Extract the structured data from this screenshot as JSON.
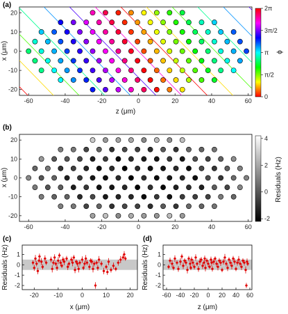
{
  "chart_data": [
    {
      "panel": "(a)",
      "type": "scatter",
      "xlabel": "z (μm)",
      "ylabel": "x (μm)",
      "xlim": [
        -65,
        62
      ],
      "ylim": [
        -23,
        23
      ],
      "xticks": [
        "-60",
        "-40",
        "-20",
        "0",
        "20",
        "40",
        "60"
      ],
      "yticks": [
        "20",
        "10",
        "0",
        "-10",
        "-20"
      ],
      "colorbar": {
        "label": "ϕ",
        "range": [
          0,
          6.2832
        ],
        "ticks": [
          "2π",
          "3π/2",
          "π",
          "π/2",
          "0"
        ],
        "colormap": "hsv"
      },
      "points_note": "ion positions colored by phase phi; diagonal phase fronts overlaid"
    },
    {
      "panel": "(b)",
      "type": "scatter",
      "xlabel": "",
      "ylabel": "x (μm)",
      "xlim": [
        -65,
        62
      ],
      "ylim": [
        -23,
        23
      ],
      "xticks": [
        "-60",
        "-40",
        "-20",
        "0",
        "20",
        "40",
        "60"
      ],
      "yticks": [
        "20",
        "10",
        "0",
        "-10",
        "-20"
      ],
      "colorbar": {
        "label": "Residuals (Hz)",
        "range": [
          -2.2,
          4.2
        ],
        "ticks": [
          "4",
          "2",
          "0",
          "-2"
        ],
        "colormap": "gray"
      }
    },
    {
      "panel": "(c)",
      "type": "scatter",
      "xlabel": "x (μm)",
      "ylabel": "Residuals (Hz)",
      "xlim": [
        -25,
        23
      ],
      "ylim": [
        -2.4,
        1.9
      ],
      "xticks": [
        "-20",
        "-10",
        "0",
        "10",
        "20"
      ],
      "yticks": [
        "1",
        "0",
        "-1",
        "-2"
      ],
      "band": [
        -0.5,
        0.5
      ],
      "series": [
        {
          "name": "",
          "x": [
            -20.5,
            -20,
            -19.5,
            -19,
            -18.5,
            -18,
            -17.8,
            -17,
            -16.5,
            -15.5,
            -15,
            -13,
            -12.5,
            -12,
            -11.5,
            -11,
            -10.5,
            -10,
            -9.5,
            -9,
            -8.5,
            -8,
            -7.5,
            -6.5,
            -6,
            -5.5,
            -4.5,
            -4,
            -3.5,
            -3,
            -2.5,
            -2,
            -1.5,
            -1,
            0,
            0.5,
            1,
            1.5,
            2,
            3,
            3.5,
            4,
            4.5,
            5,
            5.5,
            6,
            6.5,
            7,
            8,
            9,
            10,
            10.5,
            11,
            12,
            13,
            14,
            15,
            16,
            17,
            17.5,
            18
          ],
          "y": [
            0.2,
            -0.3,
            0.6,
            0.1,
            -0.6,
            0.4,
            0.8,
            0.3,
            -0.2,
            0.6,
            0.2,
            0.5,
            -0.4,
            0.2,
            0.7,
            0.1,
            -0.3,
            0.4,
            0.9,
            0.2,
            -0.1,
            0.5,
            0.3,
            0.6,
            -0.2,
            0.1,
            0.5,
            0.2,
            0.7,
            -0.5,
            0.3,
            0.1,
            -0.4,
            0.2,
            0.5,
            -0.3,
            0.1,
            0.6,
            0.2,
            -0.2,
            0.4,
            0.3,
            -0.4,
            0.1,
            -2.0,
            0.2,
            -0.3,
            0.5,
            0.1,
            -0.6,
            -0.2,
            -0.7,
            0.3,
            -0.5,
            -0.1,
            -0.4,
            0.2,
            0.5,
            0.7,
            1.0,
            0.6
          ]
        }
      ]
    },
    {
      "panel": "(d)",
      "type": "scatter",
      "xlabel": "z (μm)",
      "ylabel": "Residuals (Hz)",
      "xlim": [
        -65,
        63
      ],
      "ylim": [
        -2.4,
        1.9
      ],
      "xticks": [
        "-60",
        "-40",
        "-20",
        "0",
        "20",
        "40",
        "60"
      ],
      "yticks": [
        "1",
        "0",
        "-1",
        "-2"
      ],
      "band": [
        -0.5,
        0.5
      ],
      "series": [
        {
          "name": "",
          "x": [
            -57,
            -55,
            -52,
            -50,
            -48,
            -45,
            -43,
            -40,
            -38,
            -36,
            -34,
            -32,
            -30,
            -28,
            -26,
            -25,
            -24,
            -22,
            -20,
            -18,
            -16,
            -14,
            -12,
            -10,
            -8,
            -6,
            -5,
            -4,
            -2,
            0,
            2,
            4,
            5,
            6,
            8,
            10,
            12,
            14,
            16,
            18,
            20,
            22,
            24,
            26,
            28,
            30,
            32,
            34,
            36,
            38,
            40,
            42,
            44,
            46,
            48,
            50,
            52,
            54,
            55,
            56,
            57
          ],
          "y": [
            -0.2,
            0.4,
            0.1,
            -0.3,
            0.6,
            0.2,
            -0.4,
            0.3,
            0.8,
            -0.1,
            0.4,
            0.2,
            -0.5,
            0.6,
            0.1,
            -0.3,
            0.5,
            0.2,
            -0.2,
            0.7,
            0.1,
            -0.4,
            0.3,
            0.5,
            -0.1,
            0.2,
            0.6,
            -0.3,
            0.4,
            0.1,
            -0.2,
            0.5,
            0.2,
            -0.4,
            0.3,
            0.6,
            0.1,
            -0.2,
            0.4,
            0.2,
            -0.5,
            0.3,
            0.7,
            0.1,
            -0.3,
            0.5,
            0.2,
            -0.1,
            0.6,
            0.3,
            -0.4,
            0.2,
            0.5,
            0.1,
            -0.2,
            0.4,
            0.2,
            -0.5,
            -2.0,
            0.3,
            0.1
          ]
        }
      ]
    }
  ]
}
